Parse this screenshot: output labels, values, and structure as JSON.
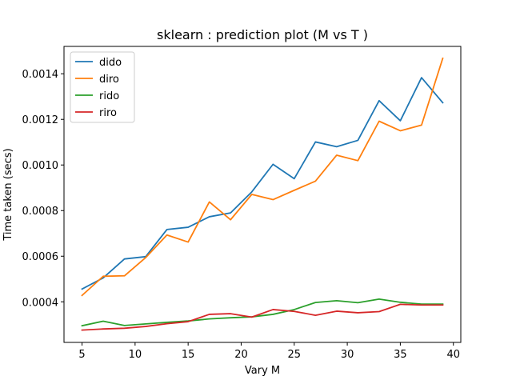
{
  "chart_data": {
    "type": "line",
    "title": "sklearn : prediction plot (M vs T )",
    "xlabel": "Vary M",
    "ylabel": "Time taken (secs)",
    "xlim": [
      3.3,
      40.7
    ],
    "ylim": [
      0.000222,
      0.00152
    ],
    "xticks": [
      5,
      10,
      15,
      20,
      25,
      30,
      35,
      40
    ],
    "yticks": [
      0.0004,
      0.0006,
      0.0008,
      0.001,
      0.0012,
      0.0014
    ],
    "ytick_labels": [
      "0.0004",
      "0.0006",
      "0.0008",
      "0.0010",
      "0.0012",
      "0.0014"
    ],
    "legend_position": "upper-left",
    "grid": false,
    "x": [
      5,
      7,
      9,
      11,
      13,
      15,
      17,
      19,
      21,
      23,
      25,
      27,
      29,
      31,
      33,
      35,
      37,
      39
    ],
    "series": [
      {
        "name": "dido",
        "color": "#1f77b4",
        "values": [
          0.000456,
          0.000505,
          0.000588,
          0.000598,
          0.000717,
          0.000727,
          0.000773,
          0.00079,
          0.000882,
          0.001003,
          0.00094,
          0.001101,
          0.00108,
          0.001108,
          0.001282,
          0.001194,
          0.001383,
          0.001273
        ]
      },
      {
        "name": "diro",
        "color": "#ff7f0e",
        "values": [
          0.000428,
          0.000512,
          0.000514,
          0.000594,
          0.000693,
          0.000662,
          0.000838,
          0.00076,
          0.000871,
          0.000848,
          0.000889,
          0.000929,
          0.001043,
          0.001019,
          0.001192,
          0.00115,
          0.001175,
          0.001468
        ]
      },
      {
        "name": "rido",
        "color": "#2ca02c",
        "values": [
          0.000295,
          0.000315,
          0.000296,
          0.000303,
          0.00031,
          0.000316,
          0.000325,
          0.00033,
          0.000334,
          0.000345,
          0.000366,
          0.000397,
          0.000405,
          0.000396,
          0.000412,
          0.000398,
          0.00039,
          0.00039
        ]
      },
      {
        "name": "riro",
        "color": "#d62728",
        "values": [
          0.000276,
          0.000281,
          0.000284,
          0.000292,
          0.000304,
          0.000313,
          0.000345,
          0.000348,
          0.000333,
          0.000366,
          0.000358,
          0.000341,
          0.000359,
          0.000352,
          0.000357,
          0.000389,
          0.000386,
          0.000386
        ]
      }
    ]
  }
}
